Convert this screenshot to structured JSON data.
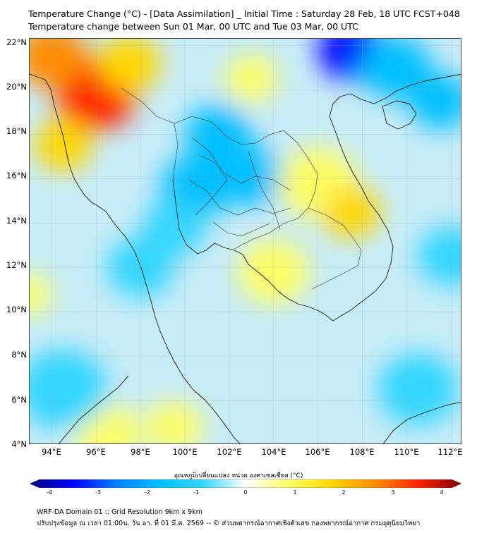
{
  "header": {
    "title_line1": "Temperature Change (°C) - [Data Assimilation] _ Initial Time : Saturday 28 Feb, 18 UTC FCST+048",
    "title_line2": "Temperature change between Sun 01 Mar, 00 UTC and Tue 03 Mar, 00 UTC"
  },
  "map": {
    "lat_labels": [
      "22°N",
      "20°N",
      "18°N",
      "16°N",
      "14°N",
      "12°N",
      "10°N",
      "8°N",
      "6°N",
      "4°N"
    ],
    "lon_labels": [
      "94°E",
      "96°E",
      "98°E",
      "100°E",
      "102°E",
      "104°E",
      "106°E",
      "108°E",
      "110°E",
      "112°E"
    ],
    "lat_range": [
      4,
      22.3
    ],
    "lon_range": [
      93,
      112.5
    ],
    "field_blobs": [
      {
        "lon": 96.0,
        "lat": 19.8,
        "value": 2.8,
        "spread": 1.8
      },
      {
        "lon": 94.0,
        "lat": 21.5,
        "value": 2.5,
        "spread": 1.6
      },
      {
        "lon": 97.5,
        "lat": 21.2,
        "value": 1.8,
        "spread": 1.4
      },
      {
        "lon": 94.5,
        "lat": 17.5,
        "value": 1.5,
        "spread": 1.3
      },
      {
        "lon": 100.5,
        "lat": 15.6,
        "value": -2.0,
        "spread": 1.6
      },
      {
        "lon": 103.0,
        "lat": 16.1,
        "value": -1.8,
        "spread": 1.5
      },
      {
        "lon": 101.5,
        "lat": 18.0,
        "value": -1.5,
        "spread": 1.5
      },
      {
        "lon": 99.5,
        "lat": 13.8,
        "value": -1.0,
        "spread": 1.4
      },
      {
        "lon": 107.5,
        "lat": 21.8,
        "value": -3.2,
        "spread": 1.5
      },
      {
        "lon": 109.5,
        "lat": 21.0,
        "value": -2.0,
        "spread": 1.6
      },
      {
        "lon": 111.5,
        "lat": 19.5,
        "value": -1.3,
        "spread": 1.4
      },
      {
        "lon": 106.0,
        "lat": 15.8,
        "value": 0.9,
        "spread": 1.8
      },
      {
        "lon": 104.0,
        "lat": 11.8,
        "value": 1.0,
        "spread": 1.6
      },
      {
        "lon": 107.5,
        "lat": 14.5,
        "value": 1.2,
        "spread": 1.3
      },
      {
        "lon": 103.0,
        "lat": 20.5,
        "value": 0.8,
        "spread": 1.2
      },
      {
        "lon": 96.5,
        "lat": 4.5,
        "value": 0.6,
        "spread": 1.5
      },
      {
        "lon": 99.5,
        "lat": 4.8,
        "value": 0.5,
        "spread": 1.3
      },
      {
        "lon": 93.0,
        "lat": 10.8,
        "value": 0.7,
        "spread": 1.0
      },
      {
        "lon": 110.5,
        "lat": 6.5,
        "value": -0.8,
        "spread": 1.8
      },
      {
        "lon": 112.0,
        "lat": 12.5,
        "value": -0.5,
        "spread": 1.5
      },
      {
        "lon": 94.5,
        "lat": 6.5,
        "value": -0.6,
        "spread": 2.0
      },
      {
        "lon": 98.0,
        "lat": 12.0,
        "value": -0.6,
        "spread": 1.5
      }
    ]
  },
  "colorbar": {
    "title": "อุณหภูมิเปลี่ยนแปลง หน่วย องศาเซลเซียส (°C)",
    "min": -4,
    "max": 4,
    "ticks": [
      "-4",
      "-3",
      "-2",
      "-1",
      "0",
      "1",
      "2",
      "3",
      "4"
    ],
    "colors": [
      "#00007f",
      "#0000ff",
      "#007fff",
      "#00bfff",
      "#33d6ff",
      "#ffffff",
      "#ffff66",
      "#ffd700",
      "#ff8c00",
      "#ff2200",
      "#7f0000"
    ]
  },
  "footer": {
    "line1": "WRF-DA Domain 01 :: Grid Resolution 9km x 9km",
    "line2": "ปรับปรุงข้อมูล ณ เวลา 01:00น. วัน อา. ที่ 01 มี.ค. 2569 -- © ส่วนพยากรณ์อากาศเชิงตัวเลข กองพยากรณ์อากาศ กรมอุตุนิยมวิทยา"
  }
}
